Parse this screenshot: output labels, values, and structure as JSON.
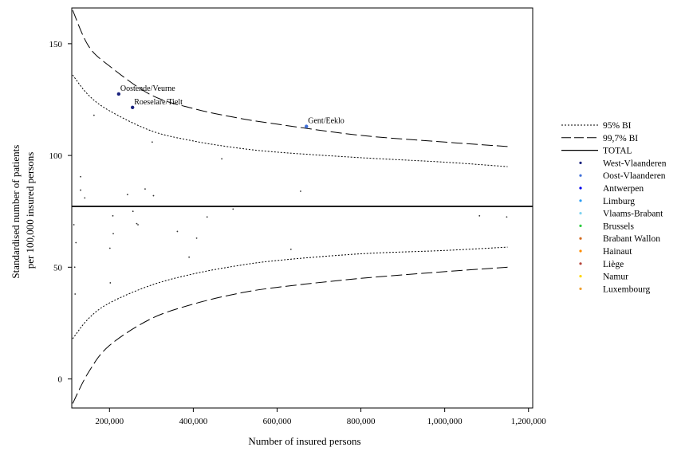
{
  "chart_data": {
    "type": "scatter",
    "title": "",
    "xlabel": "Number of insured persons",
    "ylabel_lines": [
      "Standardised number of patients",
      "per 100,000 insured persons"
    ],
    "xlim": [
      110000,
      1210000
    ],
    "ylim": [
      -13,
      166
    ],
    "x_ticks": [
      200000,
      400000,
      600000,
      800000,
      1000000,
      1200000
    ],
    "x_tick_labels": [
      "200,000",
      "400,000",
      "600,000",
      "800,000",
      "1,000,000",
      "1,200,000"
    ],
    "y_ticks": [
      0,
      50,
      100,
      150
    ],
    "y_tick_labels": [
      "0",
      "50",
      "100",
      "150"
    ],
    "grid": false,
    "legend_position": "right",
    "total": 77.2,
    "band_x_range": [
      112000,
      1150000
    ],
    "bands": [
      {
        "name": "95% BI",
        "style": "dotted",
        "upper": [
          [
            112000,
            136
          ],
          [
            150000,
            127
          ],
          [
            200000,
            120
          ],
          [
            300000,
            111
          ],
          [
            400000,
            106.5
          ],
          [
            500000,
            103.5
          ],
          [
            600000,
            101.5
          ],
          [
            800000,
            99
          ],
          [
            1000000,
            97
          ],
          [
            1150000,
            95
          ]
        ],
        "lower": [
          [
            112000,
            18
          ],
          [
            150000,
            27
          ],
          [
            200000,
            34
          ],
          [
            300000,
            42
          ],
          [
            400000,
            47
          ],
          [
            500000,
            50.5
          ],
          [
            600000,
            53
          ],
          [
            800000,
            56
          ],
          [
            1000000,
            57.5
          ],
          [
            1150000,
            59
          ]
        ]
      },
      {
        "name": "99,7% BI",
        "style": "dashed",
        "upper": [
          [
            112000,
            165
          ],
          [
            150000,
            149
          ],
          [
            200000,
            140
          ],
          [
            300000,
            127
          ],
          [
            400000,
            121
          ],
          [
            500000,
            117
          ],
          [
            600000,
            114
          ],
          [
            800000,
            109
          ],
          [
            1000000,
            106
          ],
          [
            1150000,
            104
          ]
        ],
        "lower": [
          [
            112000,
            -11
          ],
          [
            150000,
            3
          ],
          [
            200000,
            15
          ],
          [
            300000,
            27
          ],
          [
            400000,
            33.5
          ],
          [
            500000,
            38
          ],
          [
            600000,
            41
          ],
          [
            800000,
            45
          ],
          [
            1000000,
            48
          ],
          [
            1150000,
            50
          ]
        ]
      }
    ],
    "legend": [
      {
        "label": "95% BI",
        "kind": "line",
        "style": "dotted"
      },
      {
        "label": "99,7% BI",
        "kind": "line",
        "style": "dashed"
      },
      {
        "label": "TOTAL",
        "kind": "line",
        "style": "solid"
      },
      {
        "label": "West-Vlaanderen",
        "kind": "dot",
        "color": "#1a237e"
      },
      {
        "label": "Oost-Vlaanderen",
        "kind": "dot",
        "color": "#3f6fd8"
      },
      {
        "label": "Antwerpen",
        "kind": "dot",
        "color": "#0000ee"
      },
      {
        "label": "Limburg",
        "kind": "dot",
        "color": "#2a9df4"
      },
      {
        "label": "Vlaams-Brabant",
        "kind": "dot",
        "color": "#7fd3f0"
      },
      {
        "label": "Brussels",
        "kind": "dot",
        "color": "#2ecc40"
      },
      {
        "label": "Brabant Wallon",
        "kind": "dot",
        "color": "#d2691e"
      },
      {
        "label": "Hainaut",
        "kind": "dot",
        "color": "#ff8c00"
      },
      {
        "label": "Liège",
        "kind": "dot",
        "color": "#b5443a"
      },
      {
        "label": "Namur",
        "kind": "dot",
        "color": "#ffd700"
      },
      {
        "label": "Luxembourg",
        "kind": "dot",
        "color": "#f0a030"
      }
    ],
    "points": [
      {
        "x": 222000,
        "y": 127.5,
        "label": "Oostende/Veurne",
        "color": "#1a237e",
        "highlight": true
      },
      {
        "x": 255000,
        "y": 121.5,
        "label": "Roeselare/Tielt",
        "color": "#1a237e",
        "highlight": true
      },
      {
        "x": 670000,
        "y": 113,
        "label": "Gent/Eeklo",
        "color": "#3f6fd8",
        "highlight": true
      },
      {
        "x": 163000,
        "y": 118,
        "color": "#333"
      },
      {
        "x": 302000,
        "y": 106,
        "color": "#333"
      },
      {
        "x": 468000,
        "y": 98.5,
        "color": "#333"
      },
      {
        "x": 131000,
        "y": 90.5,
        "color": "#333"
      },
      {
        "x": 131000,
        "y": 84.5,
        "color": "#333"
      },
      {
        "x": 141000,
        "y": 81,
        "color": "#333"
      },
      {
        "x": 243000,
        "y": 82.5,
        "color": "#333"
      },
      {
        "x": 285000,
        "y": 85,
        "color": "#333"
      },
      {
        "x": 305000,
        "y": 82,
        "color": "#333"
      },
      {
        "x": 656000,
        "y": 84,
        "color": "#333"
      },
      {
        "x": 115000,
        "y": 69,
        "color": "#333"
      },
      {
        "x": 120000,
        "y": 61,
        "color": "#333"
      },
      {
        "x": 117000,
        "y": 50,
        "color": "#333"
      },
      {
        "x": 118000,
        "y": 38,
        "color": "#333"
      },
      {
        "x": 208000,
        "y": 73,
        "color": "#333"
      },
      {
        "x": 209000,
        "y": 65,
        "color": "#333"
      },
      {
        "x": 201000,
        "y": 58.5,
        "color": "#333"
      },
      {
        "x": 202000,
        "y": 43,
        "color": "#333"
      },
      {
        "x": 256000,
        "y": 75,
        "color": "#333"
      },
      {
        "x": 265000,
        "y": 69.5,
        "color": "#333"
      },
      {
        "x": 268000,
        "y": 69,
        "color": "#333"
      },
      {
        "x": 362000,
        "y": 66,
        "color": "#333"
      },
      {
        "x": 390000,
        "y": 54.5,
        "color": "#333"
      },
      {
        "x": 408000,
        "y": 63,
        "color": "#333"
      },
      {
        "x": 433000,
        "y": 72.5,
        "color": "#333"
      },
      {
        "x": 495000,
        "y": 76,
        "color": "#333"
      },
      {
        "x": 633000,
        "y": 58,
        "color": "#333"
      },
      {
        "x": 1083000,
        "y": 73,
        "color": "#333"
      },
      {
        "x": 1148000,
        "y": 72.5,
        "color": "#333"
      }
    ]
  }
}
